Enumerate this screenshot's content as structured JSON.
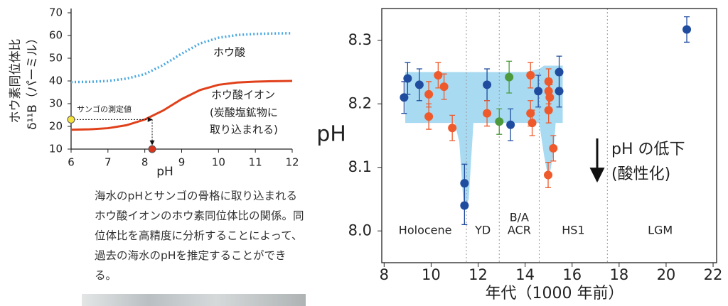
{
  "chart_data": [
    {
      "type": "line",
      "x_label": "pH",
      "y_label": [
        "ホウ素同位体比",
        "δ¹¹B（パーミル）"
      ],
      "xlim": [
        6,
        12
      ],
      "xticks": [
        6,
        7,
        8,
        9,
        10,
        11,
        12
      ],
      "ylim": [
        10,
        70
      ],
      "yticks": [
        10,
        20,
        30,
        40,
        50,
        60,
        70
      ],
      "x": [
        6,
        6.5,
        7,
        7.5,
        8,
        8.5,
        9,
        9.5,
        10,
        10.5,
        11,
        11.5,
        12
      ],
      "series": [
        {
          "name": "ホウ酸",
          "color": "#4aa8e0",
          "style": "dotted",
          "values": [
            39.5,
            39.6,
            40,
            41,
            43,
            47,
            52,
            56.5,
            59,
            60.2,
            60.7,
            60.9,
            61
          ]
        },
        {
          "name": "ホウ酸イオン",
          "color": "#e0401a",
          "style": "solid",
          "values": [
            18.5,
            18.7,
            19.2,
            20.5,
            23,
            27,
            32,
            36,
            38.3,
            39.3,
            39.7,
            39.9,
            40
          ]
        }
      ],
      "annotations": [
        "(炭酸塩鉱物に",
        "取り込まれる)"
      ],
      "measurement": {
        "label": "サンゴの測定値",
        "x": 8.2,
        "y": 23,
        "colors": [
          "#f5e13c",
          "#d9341c"
        ]
      }
    },
    {
      "type": "scatter",
      "x_label": "年代（1000 年前）",
      "y_label": "pH",
      "xlim": [
        7.9,
        22.15
      ],
      "xticks": [
        8,
        10,
        12,
        14,
        16,
        18,
        20,
        22
      ],
      "ylim": [
        7.95,
        8.35
      ],
      "yticks": [
        {
          "value": 8,
          "label": "8.0"
        },
        8.1,
        8.2,
        8.3
      ],
      "envelope": {
        "color": "#a8daf2",
        "x": [
          8.9,
          9.5,
          10,
          10.5,
          11,
          11.2,
          11.4,
          11.6,
          11.8,
          12,
          13,
          14,
          14.6,
          14.8,
          15,
          15.2,
          15.3,
          15.6
        ],
        "upper": [
          8.25,
          8.25,
          8.25,
          8.25,
          8.25,
          8.25,
          8.25,
          8.25,
          8.25,
          8.25,
          8.25,
          8.25,
          8.255,
          8.26,
          8.26,
          8.26,
          8.26,
          8.26
        ],
        "lower": [
          8.17,
          8.17,
          8.17,
          8.17,
          8.17,
          8.14,
          8.03,
          8.05,
          8.17,
          8.17,
          8.17,
          8.17,
          8.17,
          8.12,
          8.08,
          8.12,
          8.17,
          8.17
        ]
      },
      "series": [
        {
          "color": "#1f4c9e",
          "x": [
            8.85,
            9.0,
            9.5,
            11.42,
            11.42,
            12.38,
            13.38,
            14.56,
            15.45,
            15.45,
            20.88
          ],
          "values": [
            8.21,
            8.24,
            8.23,
            8.075,
            8.04,
            8.23,
            8.167,
            8.22,
            8.25,
            8.22,
            8.317
          ],
          "errors": [
            0.025,
            0.025,
            0.025,
            0.03,
            0.03,
            0.025,
            0.025,
            0.025,
            0.025,
            0.025,
            0.02
          ]
        },
        {
          "color": "#ee5a2c",
          "x": [
            9.9,
            9.9,
            10.3,
            10.55,
            10.9,
            12.38,
            14.23,
            14.23,
            14.3,
            15.0,
            15.0,
            15.05,
            15.0,
            14.98,
            15.2
          ],
          "values": [
            8.215,
            8.18,
            8.245,
            8.227,
            8.162,
            8.185,
            8.245,
            8.185,
            8.17,
            8.235,
            8.22,
            8.21,
            8.19,
            8.088,
            8.13
          ],
          "errors": [
            0.02,
            0.02,
            0.02,
            0.02,
            0.02,
            0.02,
            0.02,
            0.02,
            0.02,
            0.02,
            0.02,
            0.02,
            0.02,
            0.02,
            0.02
          ]
        },
        {
          "color": "#4c9a3c",
          "x": [
            12.9,
            13.32
          ],
          "values": [
            8.172,
            8.242
          ],
          "errors": [
            0.02,
            0.025
          ]
        }
      ],
      "dividers": [
        11.5,
        12.9,
        14.6,
        17.5
      ],
      "periods": [
        "Holocene",
        "YD",
        [
          "B/A",
          "ACR"
        ],
        "HS1",
        "LGM"
      ],
      "annotations": [
        "pH の低下",
        "(酸性化)"
      ]
    }
  ],
  "caption": "海水のpHとサンゴの骨格に取り込まれるホウ酸イオンのホウ素同位体比の関係。同位体比を高精度に分析することによって、過去の海水のpHを推定することができる。"
}
